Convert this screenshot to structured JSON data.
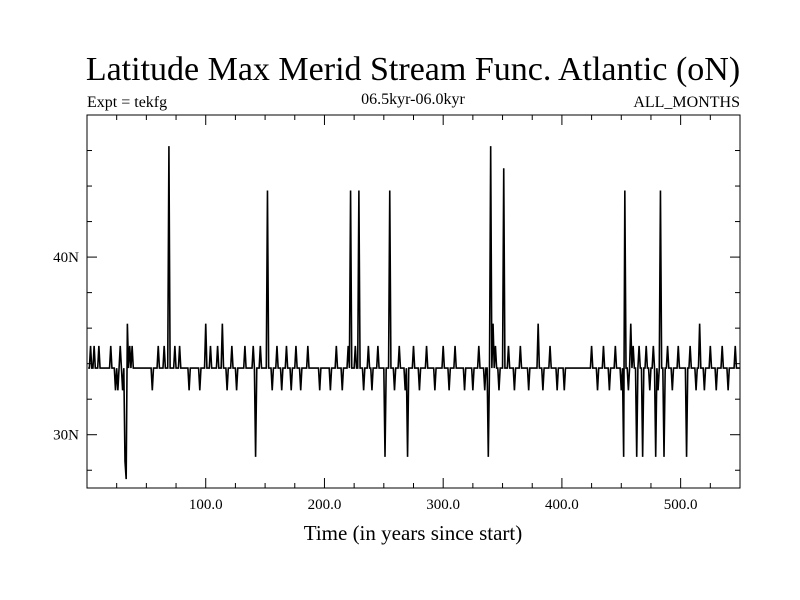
{
  "chart_data": {
    "type": "line",
    "title": "Latitude Max Merid Stream Func. Atlantic (oN)",
    "subtitle_left": "Expt = tekfg",
    "subtitle_center": "06.5kyr-06.0kyr",
    "subtitle_right": "ALL_MONTHS",
    "xlabel": "Time (in years since start)",
    "ylabel": "",
    "xlim": [
      0,
      550
    ],
    "ylim": [
      27,
      48
    ],
    "x_ticks": [
      100,
      200,
      300,
      400,
      500
    ],
    "x_tick_labels": [
      "100.0",
      "200.0",
      "300.0",
      "400.0",
      "500.0"
    ],
    "y_ticks": [
      30,
      40
    ],
    "y_tick_labels": [
      "30N",
      "40N"
    ],
    "grid": false,
    "legend": "none",
    "line_color": "#000000",
    "series": [
      {
        "x_start": 1,
        "x_step": 1,
        "baseline": 33.75,
        "baseline_pattern": [
          0,
          0,
          0,
          1.25,
          0,
          0,
          0,
          0,
          -1.25,
          0,
          0,
          0,
          0,
          1.25,
          0,
          0,
          0,
          0,
          0,
          0,
          -1.25,
          0,
          0
        ],
        "excursions": [
          {
            "x": 3,
            "y": 35.0
          },
          {
            "x": 6,
            "y": 35.0
          },
          {
            "x": 10,
            "y": 35.0
          },
          {
            "x": 20,
            "y": 35.0
          },
          {
            "x": 24,
            "y": 32.5
          },
          {
            "x": 26,
            "y": 32.5
          },
          {
            "x": 28,
            "y": 35.0
          },
          {
            "x": 30,
            "y": 32.5
          },
          {
            "x": 32,
            "y": 28.5
          },
          {
            "x": 33,
            "y": 27.5
          },
          {
            "x": 34,
            "y": 36.25
          },
          {
            "x": 36,
            "y": 35.0
          },
          {
            "x": 38,
            "y": 35.0
          },
          {
            "x": 55,
            "y": 32.5
          },
          {
            "x": 60,
            "y": 35.0
          },
          {
            "x": 65,
            "y": 35.0
          },
          {
            "x": 69,
            "y": 46.25
          },
          {
            "x": 74,
            "y": 35.0
          },
          {
            "x": 78,
            "y": 35.0
          },
          {
            "x": 86,
            "y": 32.5
          },
          {
            "x": 95,
            "y": 32.5
          },
          {
            "x": 100,
            "y": 36.25
          },
          {
            "x": 104,
            "y": 35.0
          },
          {
            "x": 110,
            "y": 35.0
          },
          {
            "x": 114,
            "y": 36.25
          },
          {
            "x": 118,
            "y": 32.5
          },
          {
            "x": 122,
            "y": 35.0
          },
          {
            "x": 126,
            "y": 32.5
          },
          {
            "x": 133,
            "y": 35.0
          },
          {
            "x": 140,
            "y": 35.0
          },
          {
            "x": 142,
            "y": 28.75
          },
          {
            "x": 146,
            "y": 35.0
          },
          {
            "x": 152,
            "y": 43.75
          },
          {
            "x": 156,
            "y": 32.5
          },
          {
            "x": 160,
            "y": 35.0
          },
          {
            "x": 164,
            "y": 32.5
          },
          {
            "x": 168,
            "y": 35.0
          },
          {
            "x": 172,
            "y": 32.5
          },
          {
            "x": 176,
            "y": 35.0
          },
          {
            "x": 180,
            "y": 32.5
          },
          {
            "x": 186,
            "y": 35.0
          },
          {
            "x": 196,
            "y": 32.5
          },
          {
            "x": 205,
            "y": 32.5
          },
          {
            "x": 210,
            "y": 35.0
          },
          {
            "x": 215,
            "y": 32.5
          },
          {
            "x": 220,
            "y": 35.0
          },
          {
            "x": 222,
            "y": 43.75
          },
          {
            "x": 226,
            "y": 35.0
          },
          {
            "x": 229,
            "y": 43.75
          },
          {
            "x": 233,
            "y": 32.5
          },
          {
            "x": 237,
            "y": 35.0
          },
          {
            "x": 240,
            "y": 32.5
          },
          {
            "x": 245,
            "y": 35.0
          },
          {
            "x": 251,
            "y": 28.75
          },
          {
            "x": 255,
            "y": 43.75
          },
          {
            "x": 259,
            "y": 32.5
          },
          {
            "x": 263,
            "y": 35.0
          },
          {
            "x": 268,
            "y": 32.5
          },
          {
            "x": 270,
            "y": 28.75
          },
          {
            "x": 275,
            "y": 35.0
          },
          {
            "x": 280,
            "y": 32.5
          },
          {
            "x": 286,
            "y": 35.0
          },
          {
            "x": 293,
            "y": 32.5
          },
          {
            "x": 300,
            "y": 35.0
          },
          {
            "x": 305,
            "y": 32.5
          },
          {
            "x": 310,
            "y": 35.0
          },
          {
            "x": 318,
            "y": 32.5
          },
          {
            "x": 325,
            "y": 32.5
          },
          {
            "x": 330,
            "y": 35.0
          },
          {
            "x": 335,
            "y": 32.5
          },
          {
            "x": 338,
            "y": 28.75
          },
          {
            "x": 340,
            "y": 46.25
          },
          {
            "x": 342,
            "y": 36.25
          },
          {
            "x": 344,
            "y": 35.0
          },
          {
            "x": 347,
            "y": 32.5
          },
          {
            "x": 351,
            "y": 45.0
          },
          {
            "x": 355,
            "y": 35.0
          },
          {
            "x": 360,
            "y": 32.5
          },
          {
            "x": 365,
            "y": 35.0
          },
          {
            "x": 372,
            "y": 32.5
          },
          {
            "x": 380,
            "y": 36.25
          },
          {
            "x": 384,
            "y": 32.5
          },
          {
            "x": 390,
            "y": 35.0
          },
          {
            "x": 396,
            "y": 32.5
          },
          {
            "x": 402,
            "y": 32.5
          },
          {
            "x": 425,
            "y": 35.0
          },
          {
            "x": 430,
            "y": 32.5
          },
          {
            "x": 435,
            "y": 35.0
          },
          {
            "x": 440,
            "y": 32.5
          },
          {
            "x": 445,
            "y": 35.0
          },
          {
            "x": 450,
            "y": 32.5
          },
          {
            "x": 452,
            "y": 28.75
          },
          {
            "x": 453,
            "y": 43.75
          },
          {
            "x": 456,
            "y": 32.5
          },
          {
            "x": 458,
            "y": 36.25
          },
          {
            "x": 460,
            "y": 35.0
          },
          {
            "x": 463,
            "y": 28.75
          },
          {
            "x": 465,
            "y": 35.0
          },
          {
            "x": 468,
            "y": 28.75
          },
          {
            "x": 471,
            "y": 35.0
          },
          {
            "x": 474,
            "y": 32.5
          },
          {
            "x": 477,
            "y": 35.0
          },
          {
            "x": 479,
            "y": 28.75
          },
          {
            "x": 481,
            "y": 32.5
          },
          {
            "x": 483,
            "y": 43.75
          },
          {
            "x": 486,
            "y": 28.75
          },
          {
            "x": 489,
            "y": 35.0
          },
          {
            "x": 493,
            "y": 32.5
          },
          {
            "x": 498,
            "y": 35.0
          },
          {
            "x": 505,
            "y": 28.75
          },
          {
            "x": 508,
            "y": 35.0
          },
          {
            "x": 513,
            "y": 32.5
          },
          {
            "x": 516,
            "y": 36.25
          },
          {
            "x": 520,
            "y": 32.5
          },
          {
            "x": 525,
            "y": 35.0
          },
          {
            "x": 530,
            "y": 32.5
          },
          {
            "x": 535,
            "y": 35.0
          },
          {
            "x": 540,
            "y": 32.5
          },
          {
            "x": 546,
            "y": 35.0
          }
        ]
      }
    ]
  }
}
